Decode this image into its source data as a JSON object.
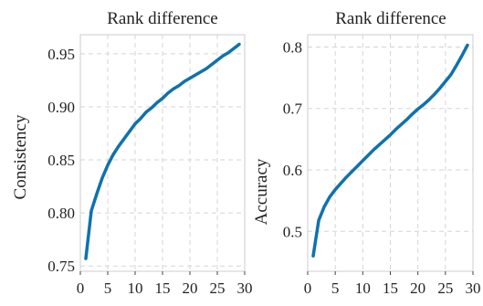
{
  "chart_data": [
    {
      "type": "line",
      "title": "Rank difference",
      "xlabel": "",
      "ylabel": "Consistency",
      "xlim": [
        0,
        30
      ],
      "ylim": [
        0.745,
        0.968
      ],
      "xticks": [
        0,
        5,
        10,
        15,
        20,
        25,
        30
      ],
      "yticks": [
        0.75,
        0.8,
        0.85,
        0.9,
        0.95
      ],
      "ytick_labels": [
        "0.75",
        "0.80",
        "0.85",
        "0.90",
        "0.95"
      ],
      "grid": true,
      "line_color": "#0f72ad",
      "series": [
        {
          "x": [
            1,
            2,
            3,
            4,
            5,
            6,
            7,
            8,
            9,
            10,
            11,
            12,
            13,
            14,
            15,
            16,
            17,
            18,
            19,
            20,
            21,
            22,
            23,
            24,
            25,
            26,
            27,
            28,
            29
          ],
          "values": [
            0.757,
            0.802,
            0.818,
            0.833,
            0.845,
            0.855,
            0.863,
            0.87,
            0.877,
            0.884,
            0.889,
            0.895,
            0.899,
            0.904,
            0.908,
            0.913,
            0.917,
            0.92,
            0.924,
            0.927,
            0.93,
            0.933,
            0.936,
            0.94,
            0.944,
            0.948,
            0.951,
            0.955,
            0.959
          ]
        }
      ]
    },
    {
      "type": "line",
      "title": "Rank difference",
      "xlabel": "",
      "ylabel": "Accuracy",
      "xlim": [
        0,
        30
      ],
      "ylim": [
        0.435,
        0.82
      ],
      "xticks": [
        0,
        5,
        10,
        15,
        20,
        25,
        30
      ],
      "yticks": [
        0.5,
        0.6,
        0.7,
        0.8
      ],
      "ytick_labels": [
        "0.5",
        "0.6",
        "0.7",
        "0.8"
      ],
      "grid": true,
      "line_color": "#0f72ad",
      "series": [
        {
          "x": [
            1,
            2,
            3,
            4,
            5,
            6,
            7,
            8,
            9,
            10,
            11,
            12,
            13,
            14,
            15,
            16,
            17,
            18,
            19,
            20,
            21,
            22,
            23,
            24,
            25,
            26,
            27,
            28,
            29
          ],
          "values": [
            0.46,
            0.518,
            0.54,
            0.556,
            0.568,
            0.578,
            0.588,
            0.597,
            0.606,
            0.615,
            0.624,
            0.633,
            0.641,
            0.649,
            0.657,
            0.666,
            0.674,
            0.682,
            0.691,
            0.699,
            0.706,
            0.714,
            0.723,
            0.733,
            0.744,
            0.755,
            0.77,
            0.786,
            0.803
          ]
        }
      ]
    }
  ]
}
